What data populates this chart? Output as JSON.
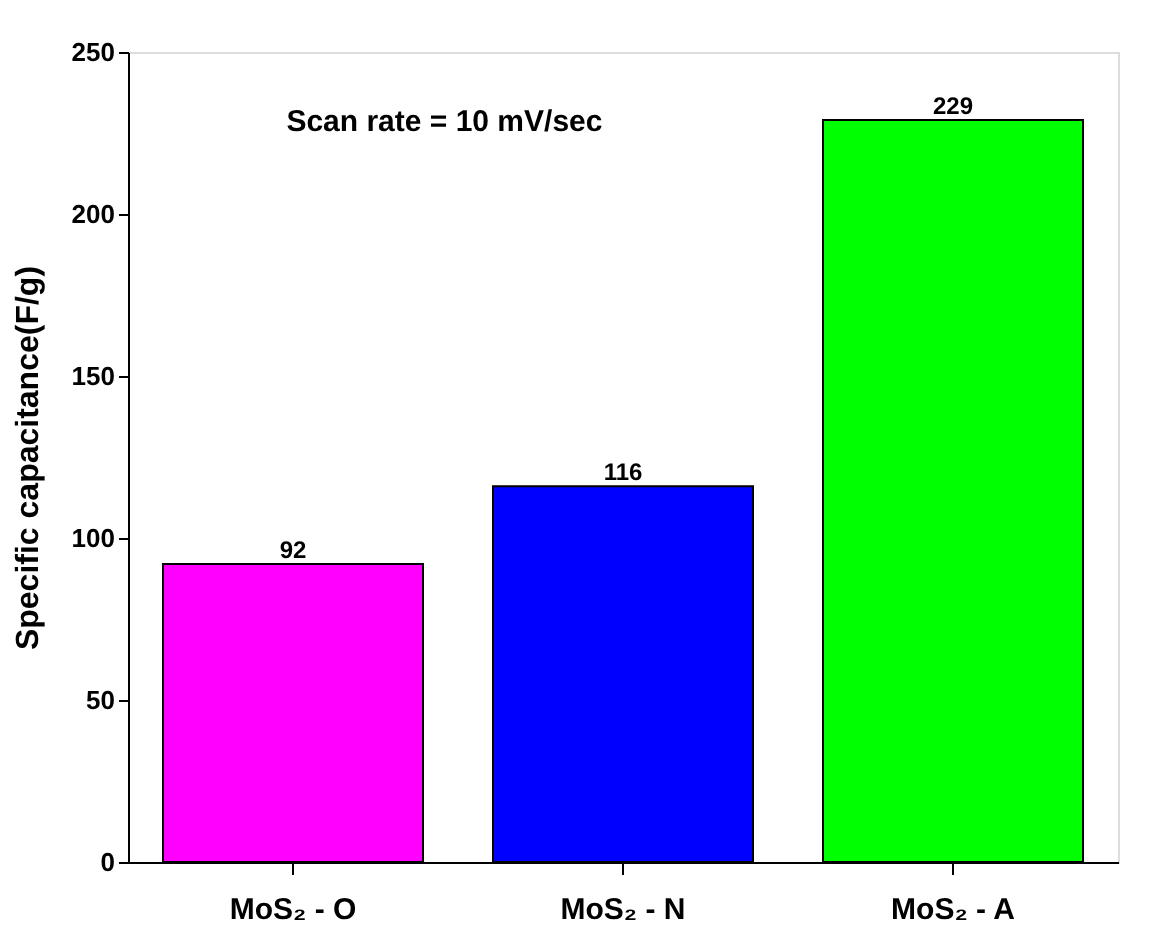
{
  "chart_data": {
    "type": "bar",
    "ylabel": "Specific capacitance(F/g)",
    "categories": [
      "MoS₂ - O",
      "MoS₂ - N",
      "MoS₂ - A"
    ],
    "values": [
      92,
      116,
      229
    ],
    "colors": [
      "#ff00ff",
      "#0000ff",
      "#00ff00"
    ],
    "ylim": [
      0,
      250
    ],
    "yticks": [
      0,
      50,
      100,
      150,
      200,
      250
    ],
    "grid": false,
    "data_labels": true,
    "legend": false,
    "annotations": [
      "Scan rate = 10 mV/sec"
    ]
  }
}
